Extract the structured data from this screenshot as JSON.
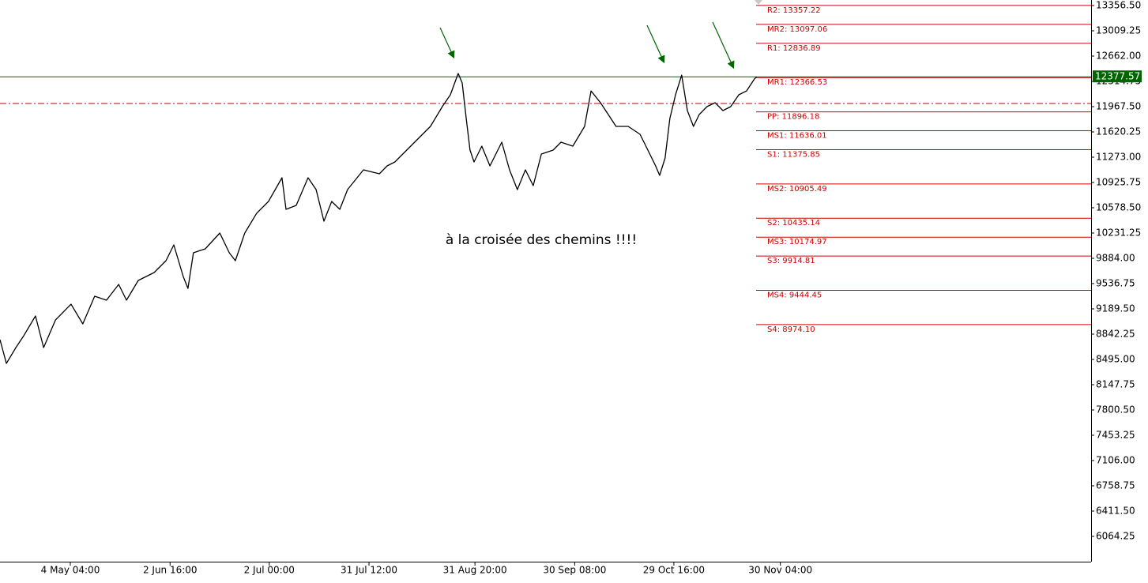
{
  "chart_data": {
    "type": "line",
    "annotation": "à la croisée des chemins !!!!",
    "x": [
      -20.8,
      -18.9,
      -16.1,
      -13.8,
      -10.3,
      -7.9,
      -4.4,
      0.2,
      3.7,
      7.2,
      10.7,
      14.3,
      16.6,
      20.1,
      24.8,
      28.3,
      30.6,
      33.4,
      34.8,
      36.4,
      39.9,
      44.2,
      47.0,
      48.8,
      51.6,
      55.1,
      58.6,
      62.6,
      63.8,
      66.8,
      70.3,
      72.7,
      75.0,
      77.3,
      79.7,
      82.0,
      86.7,
      91.4,
      93.7,
      96.0,
      99.5,
      103.0,
      106.5,
      110.0,
      112.4,
      114.7,
      115.9,
      117.1,
      118.2,
      119.4,
      121.7,
      124.1,
      127.6,
      129.9,
      132.2,
      134.6,
      136.9,
      139.3,
      142.8,
      145.1,
      148.6,
      152.1,
      154.0,
      156.8,
      159.1,
      161.4,
      165.0,
      168.5,
      170.8,
      173.1,
      174.3,
      175.9,
      177.3,
      179.0,
      180.8,
      182.5,
      184.3,
      186.0,
      188.3,
      190.7,
      193.0,
      195.3,
      197.7,
      200.0,
      202.3,
      203.0
    ],
    "series": [
      {
        "color": "#000000",
        "values": [
          8766,
          8440,
          8658,
          8820,
          9092,
          8658,
          9037,
          9254,
          8983,
          9363,
          9309,
          9526,
          9309,
          9580,
          9689,
          9851,
          10068,
          9634,
          9471,
          9960,
          10014,
          10231,
          9960,
          9851,
          10231,
          10502,
          10665,
          10991,
          10557,
          10611,
          10991,
          10828,
          10394,
          10665,
          10557,
          10828,
          11099,
          11045,
          11154,
          11208,
          11371,
          11533,
          11696,
          11967,
          12130,
          12423,
          12293,
          11804,
          11371,
          11208,
          11425,
          11154,
          11479,
          11099,
          10828,
          11099,
          10882,
          11316,
          11371,
          11479,
          11425,
          11696,
          12184,
          12022,
          11859,
          11696,
          11696,
          11588,
          11371,
          11154,
          11023,
          11262,
          11804,
          12130,
          12401,
          11913,
          11696,
          11859,
          11967,
          12022,
          11913,
          11967,
          12130,
          12184,
          12347,
          12377.57
        ]
      }
    ],
    "xlim": [
      -20.8,
      301.9
    ],
    "xticks": [
      {
        "value": 0,
        "label": "4 May 04:00"
      },
      {
        "value": 29.5,
        "label": "2 Jun 16:00"
      },
      {
        "value": 58.83,
        "label": "2 Jul 00:00"
      },
      {
        "value": 88.33,
        "label": "31 Jul 12:00"
      },
      {
        "value": 119.67,
        "label": "31 Aug 20:00"
      },
      {
        "value": 149.17,
        "label": "30 Sep 08:00"
      },
      {
        "value": 178.5,
        "label": "29 Oct 16:00"
      },
      {
        "value": 210,
        "label": "30 Nov 04:00"
      }
    ],
    "ylim": [
      5717,
      13432.5
    ],
    "yticks": [
      {
        "value": 13356.5,
        "label": "13356.50"
      },
      {
        "value": 13009.25,
        "label": "13009.25"
      },
      {
        "value": 12662,
        "label": "12662.00"
      },
      {
        "value": 12314.75,
        "label": "12314.75"
      },
      {
        "value": 11967.5,
        "label": "11967.50"
      },
      {
        "value": 11620.25,
        "label": "11620.25"
      },
      {
        "value": 11273,
        "label": "11273.00"
      },
      {
        "value": 10925.75,
        "label": "10925.75"
      },
      {
        "value": 10578.5,
        "label": "10578.50"
      },
      {
        "value": 10231.25,
        "label": "10231.25"
      },
      {
        "value": 9884,
        "label": "9884.00"
      },
      {
        "value": 9536.75,
        "label": "9536.75"
      },
      {
        "value": 9189.5,
        "label": "9189.50"
      },
      {
        "value": 8842.25,
        "label": "8842.25"
      },
      {
        "value": 8495,
        "label": "8495.00"
      },
      {
        "value": 8147.75,
        "label": "8147.75"
      },
      {
        "value": 7800.5,
        "label": "7800.50"
      },
      {
        "value": 7453.25,
        "label": "7453.25"
      },
      {
        "value": 7106,
        "label": "7106.00"
      },
      {
        "value": 6758.75,
        "label": "6758.75"
      },
      {
        "value": 6411.5,
        "label": "6411.50"
      },
      {
        "value": 6064.25,
        "label": "6064.25"
      }
    ],
    "pivot_levels": {
      "color": "#cc0000",
      "levels": [
        {
          "value": 13357.22,
          "label": "R2: 13357.22"
        },
        {
          "value": 13097.06,
          "label": "MR2: 13097.06"
        },
        {
          "value": 12836.89,
          "label": "R1: 12836.89"
        },
        {
          "value": 12366.53,
          "label": "MR1: 12366.53"
        },
        {
          "value": 11896.18,
          "label": "PP: 11896.18"
        },
        {
          "value": 11636.01,
          "label": "MS1: 11636.01"
        },
        {
          "value": 11375.85,
          "label": "S1: 11375.85"
        },
        {
          "value": 10905.49,
          "label": "MS2: 10905.49"
        },
        {
          "value": 10435.14,
          "label": "S2: 10435.14"
        },
        {
          "value": 10174.97,
          "label": "MS3: 10174.97"
        },
        {
          "value": 9914.81,
          "label": "S3: 9914.81"
        },
        {
          "value": 9444.45,
          "label": "MS4: 9444.45"
        },
        {
          "value": 8974.1,
          "label": "S4: 8974.10"
        }
      ]
    },
    "last_price": {
      "value": 12377.57,
      "color": "#006400"
    },
    "reference_line": {
      "value": 12011,
      "color": "#cc0000"
    }
  }
}
